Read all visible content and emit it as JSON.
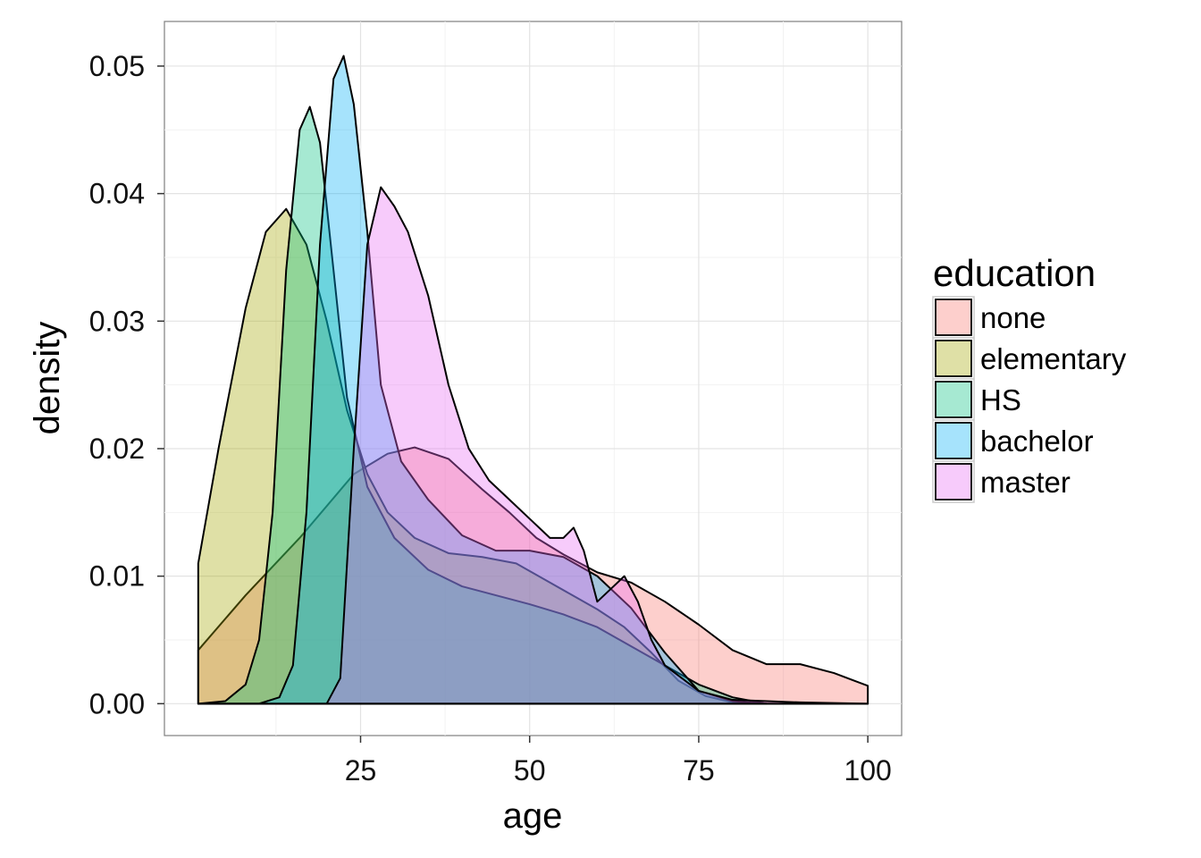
{
  "chart_data": {
    "type": "area",
    "title": "",
    "xlabel": "age",
    "ylabel": "density",
    "xlim": [
      -4,
      105
    ],
    "ylim": [
      -0.0025,
      0.0535
    ],
    "x_ticks": [
      25,
      50,
      75,
      100
    ],
    "x_tick_labels": [
      "25",
      "50",
      "75",
      "100"
    ],
    "y_ticks": [
      0,
      0.01,
      0.02,
      0.03,
      0.04,
      0.05
    ],
    "y_tick_labels": [
      "0.00",
      "0.01",
      "0.02",
      "0.03",
      "0.04",
      "0.05"
    ],
    "grid": true,
    "legend": {
      "title": "education",
      "position": "right"
    },
    "fill_opacity": 0.35,
    "series": [
      {
        "name": "none",
        "color": "#F8766D",
        "points": [
          [
            1,
            0.0042
          ],
          [
            8,
            0.0085
          ],
          [
            16,
            0.013
          ],
          [
            24,
            0.018
          ],
          [
            29,
            0.0196
          ],
          [
            33,
            0.0201
          ],
          [
            38,
            0.0192
          ],
          [
            43,
            0.0168
          ],
          [
            47,
            0.015
          ],
          [
            51,
            0.013
          ],
          [
            55,
            0.0117
          ],
          [
            60,
            0.0103
          ],
          [
            65,
            0.0095
          ],
          [
            70,
            0.008
          ],
          [
            75,
            0.0062
          ],
          [
            80,
            0.0042
          ],
          [
            85,
            0.0031
          ],
          [
            90,
            0.0031
          ],
          [
            95,
            0.0024
          ],
          [
            100,
            0.0014
          ],
          [
            100,
            0
          ]
        ]
      },
      {
        "name": "elementary",
        "color": "#A3A500",
        "points": [
          [
            1,
            0
          ],
          [
            1,
            0.011
          ],
          [
            4,
            0.02
          ],
          [
            8,
            0.031
          ],
          [
            11,
            0.037
          ],
          [
            14,
            0.0388
          ],
          [
            17,
            0.036
          ],
          [
            20,
            0.03
          ],
          [
            23,
            0.023
          ],
          [
            26,
            0.018
          ],
          [
            29,
            0.015
          ],
          [
            33,
            0.013
          ],
          [
            38,
            0.0118
          ],
          [
            43,
            0.0115
          ],
          [
            48,
            0.011
          ],
          [
            52,
            0.0098
          ],
          [
            56,
            0.0086
          ],
          [
            60,
            0.0074
          ],
          [
            64,
            0.006
          ],
          [
            68,
            0.004
          ],
          [
            72,
            0.0018
          ],
          [
            76,
            0.0006
          ],
          [
            80,
            0.0001
          ],
          [
            85,
            0
          ]
        ]
      },
      {
        "name": "HS",
        "color": "#00BF7D",
        "points": [
          [
            1,
            0
          ],
          [
            5,
            0.0002
          ],
          [
            8,
            0.0015
          ],
          [
            10,
            0.005
          ],
          [
            12,
            0.015
          ],
          [
            14,
            0.034
          ],
          [
            16,
            0.045
          ],
          [
            17.5,
            0.0468
          ],
          [
            19,
            0.044
          ],
          [
            21,
            0.034
          ],
          [
            23,
            0.024
          ],
          [
            26,
            0.017
          ],
          [
            30,
            0.013
          ],
          [
            35,
            0.0105
          ],
          [
            40,
            0.0092
          ],
          [
            45,
            0.0085
          ],
          [
            50,
            0.0078
          ],
          [
            55,
            0.007
          ],
          [
            60,
            0.006
          ],
          [
            65,
            0.0045
          ],
          [
            70,
            0.003
          ],
          [
            75,
            0.0015
          ],
          [
            80,
            0.0005
          ],
          [
            85,
            0
          ]
        ]
      },
      {
        "name": "bachelor",
        "color": "#00B0F6",
        "points": [
          [
            5,
            0
          ],
          [
            10,
            0
          ],
          [
            13,
            0.0005
          ],
          [
            15,
            0.003
          ],
          [
            17,
            0.015
          ],
          [
            19,
            0.036
          ],
          [
            21,
            0.049
          ],
          [
            22.5,
            0.0508
          ],
          [
            24,
            0.047
          ],
          [
            26,
            0.037
          ],
          [
            28,
            0.025
          ],
          [
            31,
            0.019
          ],
          [
            35,
            0.016
          ],
          [
            40,
            0.0132
          ],
          [
            45,
            0.012
          ],
          [
            50,
            0.012
          ],
          [
            55,
            0.0115
          ],
          [
            60,
            0.01
          ],
          [
            65,
            0.0075
          ],
          [
            70,
            0.004
          ],
          [
            75,
            0.001
          ],
          [
            80,
            0.0002
          ],
          [
            85,
            0
          ]
        ]
      },
      {
        "name": "master",
        "color": "#E76BF3",
        "points": [
          [
            20,
            0
          ],
          [
            22,
            0.002
          ],
          [
            24,
            0.02
          ],
          [
            26,
            0.036
          ],
          [
            28,
            0.0405
          ],
          [
            30,
            0.039
          ],
          [
            32,
            0.037
          ],
          [
            35,
            0.032
          ],
          [
            38,
            0.025
          ],
          [
            41,
            0.02
          ],
          [
            44,
            0.0175
          ],
          [
            47,
            0.016
          ],
          [
            50,
            0.0145
          ],
          [
            53,
            0.013
          ],
          [
            55,
            0.013
          ],
          [
            56.5,
            0.0138
          ],
          [
            58,
            0.012
          ],
          [
            60,
            0.008
          ],
          [
            62,
            0.009
          ],
          [
            64,
            0.01
          ],
          [
            66,
            0.008
          ],
          [
            68,
            0.005
          ],
          [
            70,
            0.003
          ],
          [
            75,
            0.001
          ],
          [
            80,
            0.0003
          ],
          [
            90,
            0.0001
          ],
          [
            100,
            0
          ]
        ]
      }
    ]
  }
}
